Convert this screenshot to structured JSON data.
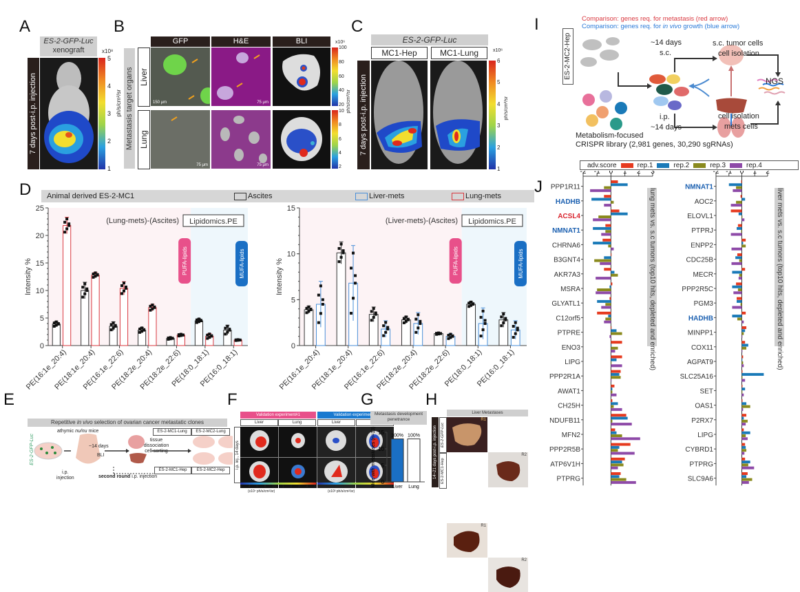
{
  "panel_labels": {
    "A": "A",
    "B": "B",
    "C": "C",
    "D": "D",
    "E": "E",
    "F": "F",
    "G": "G",
    "H": "H",
    "I": "I",
    "J": "J"
  },
  "panelA": {
    "title_line1": "ES-2-GFP-Luc",
    "title_line2": "xenograft",
    "side_label": "7 days post-i.p. injection",
    "colorbar_unit": "ph/s/cm²/sr",
    "colorbar_exp": "x10⁸",
    "colorbar_ticks": [
      "5",
      "4",
      "3",
      "2",
      "1"
    ]
  },
  "panelB": {
    "col_headers": [
      "GFP",
      "H&E",
      "BLI"
    ],
    "side_label": "Metastasis target organs",
    "rows": [
      "Liver",
      "Lung"
    ],
    "scalebars": [
      "150 μm",
      "75 μm",
      "75 μm",
      "75 μm"
    ],
    "colorbar_top_ticks": [
      "100",
      "80",
      "60",
      "40",
      "20"
    ],
    "colorbar_bottom_ticks": [
      "10",
      "8",
      "6",
      "4",
      "2"
    ],
    "colorbar_unit": "ph/s/cm²/sr",
    "colorbar_exp": "x10⁶"
  },
  "panelC": {
    "title": "ES-2-GFP-Luc",
    "col_headers": [
      "MC1-Hep",
      "MC1-Lung"
    ],
    "side_label": "7 days post-i.p. injection",
    "colorbar_ticks": [
      "6",
      "5",
      "4",
      "3",
      "2",
      "1"
    ],
    "colorbar_unit": "ph/s/cm²/sr",
    "colorbar_exp": "x10⁶"
  },
  "panelD": {
    "header": "Animal derived ES-2-MC1",
    "legend": [
      {
        "label": "Ascites",
        "color": "#333333"
      },
      {
        "label": "Liver-mets",
        "color": "#4a8fd8"
      },
      {
        "label": "Lung-mets",
        "color": "#d9383f"
      }
    ],
    "pufa_label": "PUFA-lipids",
    "mufa_label": "MUFA-lipids",
    "pufa_color": "#e8508a",
    "mufa_color": "#1a6fc4"
  },
  "chart_data": [
    {
      "type": "bar",
      "title": "(Lung-mets)-(Ascites)",
      "tag": "Lipidomics.PE",
      "ylabel": "Intensity %",
      "ylim": [
        0,
        25
      ],
      "yticks": [
        "0",
        "5",
        "10",
        "15",
        "20",
        "25"
      ],
      "categories": [
        "PE(16:1e_20:4)",
        "PE(18:1e_20:4)",
        "PE(16:1e_22:6)",
        "PE(18:2e_20:4)",
        "PE(18:2e_22:6)",
        "PE(18:0_18:1)",
        "PE(16:0_18:1)"
      ],
      "series": [
        {
          "name": "Ascites",
          "values": [
            3.9,
            10.0,
            3.5,
            2.8,
            1.3,
            4.5,
            2.8
          ],
          "errors": [
            0.5,
            1.5,
            0.8,
            0.5,
            0.2,
            0.4,
            0.9
          ]
        },
        {
          "name": "Lung-mets",
          "values": [
            21.8,
            12.8,
            10.4,
            6.9,
            1.9,
            1.7,
            1.0
          ],
          "errors": [
            1.5,
            0.5,
            1.2,
            0.6,
            0.2,
            0.5,
            0.1
          ]
        }
      ]
    },
    {
      "type": "bar",
      "title": "(Liver-mets)-(Ascites)",
      "tag": "Lipidomics.PE",
      "ylabel": "Intensity %",
      "ylim": [
        0,
        15
      ],
      "yticks": [
        "0",
        "5",
        "10",
        "15"
      ],
      "categories": [
        "PE(16:1e_20:4)",
        "PE(18:1e_20:4)",
        "PE(16:1e_22:6)",
        "PE(18:2e_20:4)",
        "PE(18:2e_22:6)",
        "PE(18:0_18:1)",
        "PE(16:0_18:1)"
      ],
      "series": [
        {
          "name": "Ascites",
          "values": [
            3.9,
            10.1,
            3.4,
            2.8,
            1.3,
            4.5,
            2.8
          ],
          "errors": [
            0.4,
            1.2,
            0.8,
            0.4,
            0.1,
            0.3,
            0.8
          ]
        },
        {
          "name": "Liver-mets",
          "values": [
            4.5,
            6.8,
            1.8,
            2.4,
            1.0,
            2.4,
            1.7
          ],
          "errors": [
            2.5,
            4.1,
            0.9,
            1.2,
            0.3,
            1.7,
            1.0
          ]
        }
      ]
    },
    {
      "type": "bar",
      "title": "Metastasis development penetrance",
      "ylabel": "Mice with metastases (n=13)",
      "ylim": [
        0,
        15
      ],
      "yticks": [
        "0",
        "5",
        "10",
        "15"
      ],
      "categories": [
        "Liver",
        "Lung"
      ],
      "values": [
        13,
        13
      ],
      "data_labels": [
        "100%",
        "100%"
      ]
    },
    {
      "type": "bar",
      "orientation": "horizontal",
      "title": "lung mets vs. s.c tumors (top10 hits, depleted and enriched)",
      "xlim": [
        -2,
        3
      ],
      "xticks": [
        "-2",
        "-1",
        "0",
        "1",
        "2",
        "3"
      ],
      "categories": [
        "PPP1R11",
        "HADHB",
        "ACSL4",
        "NMNAT1",
        "CHRNA6",
        "B3GNT4",
        "AKR7A3",
        "MSRA",
        "GLYATL1",
        "C12orf5",
        "PTPRE",
        "ENO3",
        "LIPG",
        "PPP2R1A",
        "AWAT1",
        "CH25H",
        "NDUFB11",
        "MFN2",
        "PPP2R5B",
        "ATP6V1H",
        "PTPRG"
      ],
      "highlight": {
        "HADHB": "#1a5fb0",
        "ACSL4": "#d9252e",
        "NMNAT1": "#1a5fb0"
      },
      "series": [
        {
          "name": "rep.1",
          "values": [
            0.5,
            -0.5,
            0.6,
            -0.4,
            -0.6,
            0.0,
            -0.5,
            0.1,
            -0.1,
            -1.0,
            0.0,
            0.8,
            0.8,
            0.7,
            0.25,
            0.1,
            1.1,
            0.3,
            1.4,
            1.0,
            0.7
          ]
        },
        {
          "name": "rep.2",
          "values": [
            1.2,
            -1.4,
            1.2,
            -1.3,
            -1.3,
            -0.5,
            0.25,
            -0.1,
            -1.0,
            -0.2,
            0.4,
            0.0,
            0.4,
            0.6,
            0.1,
            0.5,
            1.2,
            0.4,
            0.6,
            0.8,
            0.6
          ]
        },
        {
          "name": "rep.3",
          "values": [
            -0.5,
            0.2,
            -0.9,
            -0.4,
            -0.2,
            -1.2,
            0.5,
            -1.0,
            -0.4,
            -0.4,
            0.8,
            0.5,
            0.0,
            0.7,
            0.1,
            0.2,
            0.1,
            0.8,
            0.5,
            0.9,
            1.1
          ]
        },
        {
          "name": "rep.4",
          "values": [
            -1.5,
            -0.5,
            -1.3,
            -0.7,
            0.2,
            -0.8,
            -1.1,
            -1.1,
            -0.7,
            -0.5,
            -0.1,
            0.3,
            0.8,
            0.0,
            0.4,
            0.8,
            1.5,
            2.1,
            1.7,
            0.5,
            1.8
          ]
        }
      ]
    },
    {
      "type": "bar",
      "orientation": "horizontal",
      "title": "liver mets vs. s.c tumors (top10 hits, depleted and enriched)",
      "xlim": [
        -2,
        2
      ],
      "xticks": [
        "-2",
        "-1",
        "0",
        "1",
        "2"
      ],
      "categories": [
        "NMNAT1",
        "AOC2",
        "ELOVL1",
        "PTPRJ",
        "ENPP2",
        "CDC25B",
        "MECR",
        "PPP2R5C",
        "PGM3",
        "HADHB",
        "MINPP1",
        "COX11",
        "AGPAT9",
        "SLC25A16",
        "SET",
        "OAS1",
        "P2RX7",
        "LIPG",
        "CYBRD1",
        "PTPRG",
        "SLC9A6"
      ],
      "highlight": {
        "NMNAT1": "#1a5fb0",
        "HADHB": "#1a5fb0"
      },
      "series": [
        {
          "name": "rep.1",
          "values": [
            -0.05,
            -0.1,
            -0.85,
            -0.3,
            0.3,
            -0.35,
            0.25,
            -0.45,
            -0.4,
            0.3,
            0.35,
            0.25,
            0.1,
            0.05,
            0.05,
            0.05,
            0.35,
            0.15,
            0.25,
            0.25,
            0.45
          ]
        },
        {
          "name": "rep.2",
          "values": [
            -1.0,
            0.25,
            -0.25,
            -0.4,
            0.1,
            -0.5,
            -0.75,
            -0.75,
            -0.4,
            -0.75,
            0.25,
            0.5,
            0.0,
            1.7,
            0.25,
            0.35,
            0.15,
            0.65,
            0.3,
            0.65,
            0.35
          ]
        },
        {
          "name": "rep.3",
          "values": [
            -0.45,
            -0.45,
            0.0,
            -0.05,
            0.3,
            -0.2,
            -0.2,
            -0.3,
            -0.1,
            -0.35,
            0.15,
            0.35,
            0.1,
            0.05,
            0.0,
            0.65,
            0.45,
            0.3,
            0.35,
            0.5,
            0.8
          ]
        },
        {
          "name": "rep.4",
          "values": [
            -0.7,
            -0.85,
            0.2,
            -0.85,
            -0.8,
            -0.8,
            -0.25,
            -0.65,
            -0.75,
            0.15,
            0.0,
            0.0,
            0.15,
            0.25,
            0.15,
            0.1,
            0.3,
            0.45,
            0.2,
            0.95,
            0.55
          ]
        }
      ]
    }
  ],
  "panelJ": {
    "legend_title": "adv.score",
    "legend": [
      {
        "label": "rep.1",
        "color": "#e63a1f"
      },
      {
        "label": "rep.2",
        "color": "#1a7ab8"
      },
      {
        "label": "rep.3",
        "color": "#8a8a1e"
      },
      {
        "label": "rep.4",
        "color": "#8e4aa8"
      }
    ]
  },
  "panelI": {
    "comparison_red": "Comparison: genes req. for metastasis (red arrow)",
    "comparison_blue_prefix": "Comparison: genes req. for ",
    "comparison_blue_italic": "in vivo",
    "comparison_blue_suffix": " growth (blue arrow)",
    "cell_line": "ES-2-MC2-Hep",
    "top_days": "~14 days",
    "top_route": "s.c.",
    "bottom_route": "i.p.",
    "bottom_days": "~14 days",
    "top_out_line1": "s.c. tumor cells",
    "top_out_line2": "cell isolation",
    "bottom_out_line1": "cell isolation",
    "bottom_out_line2": "mets cells",
    "ngs": "NGS",
    "library_line1": "Metabolism-focused",
    "library_line2": "CRISPR library (2,981 genes, 30,290 sgRNAs)"
  },
  "panelE": {
    "header_prefix": "Repetitive ",
    "header_italic": "in vivo",
    "header_suffix": " selection of ovarian cancer metastatic clones",
    "cell_label": "ES-2-GFP-Luc",
    "mice_label_prefix": "athymic ",
    "mice_label_italic": "nu/nu",
    "mice_label_suffix": " mice",
    "days": "~14 days",
    "bli": "BLI",
    "process_line1": "tissue",
    "process_line2": "dissociation",
    "process_line3": "cell sorting",
    "clones": [
      "ES-2-MC1-Lung",
      "ES-2-MC2-Lung",
      "ES-2-MC1-Hep",
      "ES-2-MC2-Hep"
    ],
    "ip_line1": "i.p.",
    "ip_line2": "injection",
    "second_round_bold": "second round",
    "second_round_rest": " i.p. injection"
  },
  "panelF": {
    "exp1": "Validation experiment#1",
    "exp2": "Validation experiment#2",
    "cols": [
      "Liver",
      "Lung",
      "Liver",
      "Lung"
    ],
    "side_label": "i.p. inj., 14 days",
    "scale1_ticks": [
      "2",
      "4",
      "6",
      "8",
      "10",
      "1",
      "2",
      "3",
      "4",
      "5"
    ],
    "scale2_ticks": [
      "2",
      "4",
      "6",
      "8",
      "10",
      "1",
      "2",
      "3",
      "4",
      "5"
    ],
    "unit1": "(x10⁷ ph/s/cm²/sr)",
    "unit2": "(x10³ ph/s/cm²/sr)"
  },
  "panelH": {
    "header": "Liver Metastases",
    "side_label": "14~21 days post-i.p. injection",
    "rows": [
      "ES-2-GFP-Luc",
      "ES-2-MC1-Hep"
    ],
    "tags": [
      "R1",
      "R2",
      "R1",
      "R2"
    ]
  }
}
